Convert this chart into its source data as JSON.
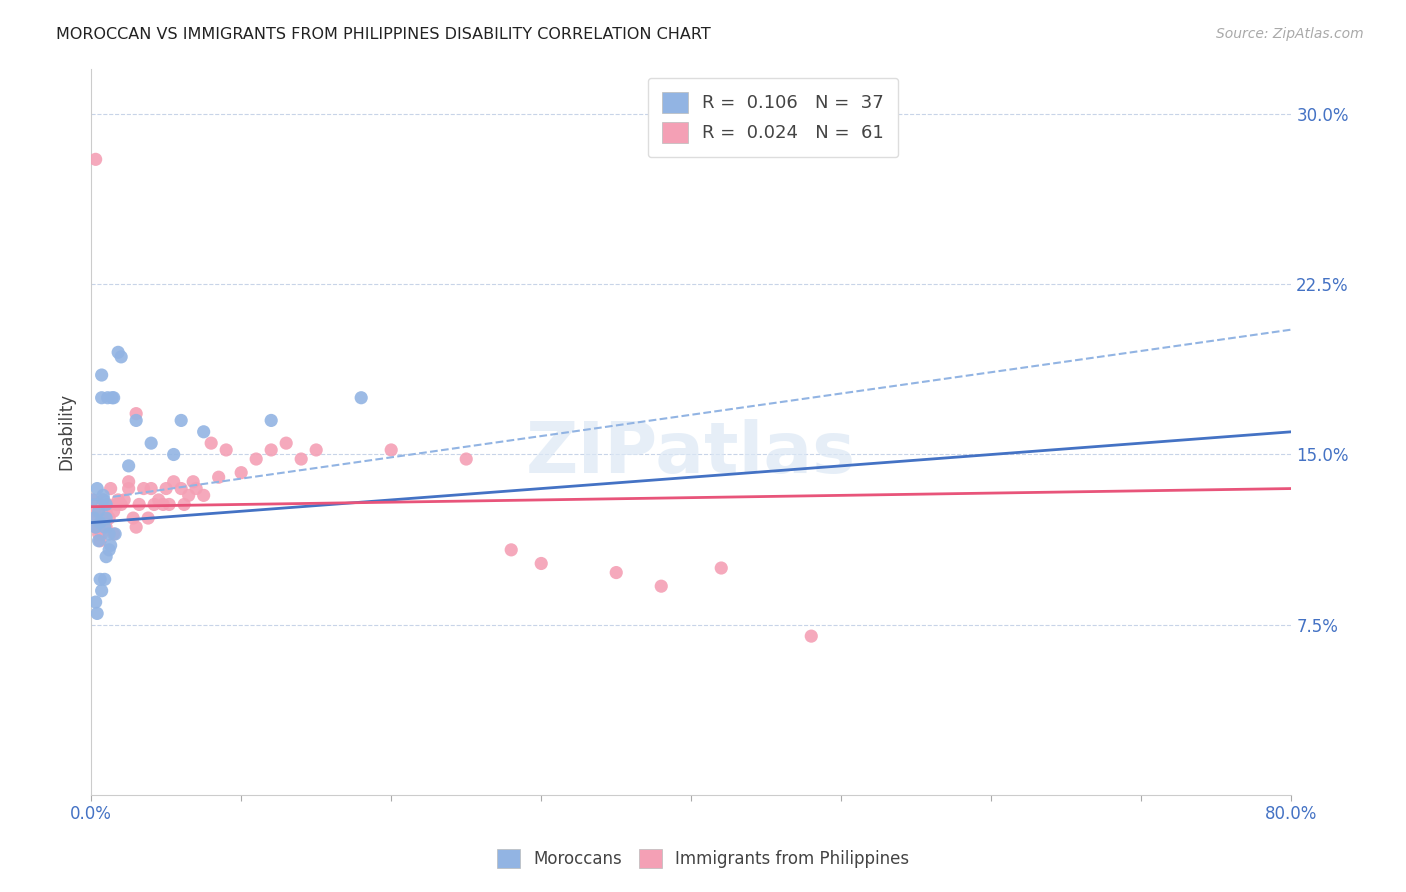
{
  "title": "MOROCCAN VS IMMIGRANTS FROM PHILIPPINES DISABILITY CORRELATION CHART",
  "source": "Source: ZipAtlas.com",
  "ylabel": "Disability",
  "xlim": [
    0.0,
    0.8
  ],
  "ylim": [
    0.0,
    0.32
  ],
  "yticks": [
    0.075,
    0.15,
    0.225,
    0.3
  ],
  "ytick_labels": [
    "7.5%",
    "15.0%",
    "22.5%",
    "30.0%"
  ],
  "xtick_labels_show": [
    "0.0%",
    "80.0%"
  ],
  "moroccan_R": 0.106,
  "moroccan_N": 37,
  "philippines_R": 0.024,
  "philippines_N": 61,
  "moroccan_color": "#92b4e3",
  "philippines_color": "#f4a0b5",
  "moroccan_line_color": "#4472c4",
  "philippines_line_color": "#e8547a",
  "dashed_line_color": "#92b4e3",
  "background_color": "#ffffff",
  "grid_color": "#c8d4e8",
  "moroccan_line": [
    0.12,
    0.16
  ],
  "philippines_line": [
    0.127,
    0.135
  ],
  "dashed_line": [
    0.13,
    0.205
  ],
  "moroccan_x": [
    0.001,
    0.002,
    0.003,
    0.004,
    0.005,
    0.005,
    0.006,
    0.007,
    0.007,
    0.008,
    0.008,
    0.009,
    0.01,
    0.01,
    0.011,
    0.012,
    0.013,
    0.014,
    0.015,
    0.016,
    0.018,
    0.02,
    0.025,
    0.03,
    0.04,
    0.055,
    0.06,
    0.075,
    0.003,
    0.004,
    0.006,
    0.007,
    0.009,
    0.01,
    0.012,
    0.12,
    0.18
  ],
  "moroccan_y": [
    0.13,
    0.122,
    0.118,
    0.135,
    0.112,
    0.125,
    0.12,
    0.175,
    0.185,
    0.13,
    0.132,
    0.118,
    0.122,
    0.128,
    0.175,
    0.115,
    0.11,
    0.175,
    0.175,
    0.115,
    0.195,
    0.193,
    0.145,
    0.165,
    0.155,
    0.15,
    0.165,
    0.16,
    0.085,
    0.08,
    0.095,
    0.09,
    0.095,
    0.105,
    0.108,
    0.165,
    0.175
  ],
  "philippines_x": [
    0.001,
    0.002,
    0.003,
    0.003,
    0.004,
    0.005,
    0.005,
    0.006,
    0.007,
    0.008,
    0.008,
    0.009,
    0.01,
    0.01,
    0.011,
    0.012,
    0.013,
    0.015,
    0.015,
    0.017,
    0.018,
    0.02,
    0.022,
    0.025,
    0.025,
    0.028,
    0.03,
    0.032,
    0.035,
    0.038,
    0.04,
    0.042,
    0.045,
    0.048,
    0.05,
    0.052,
    0.055,
    0.06,
    0.062,
    0.065,
    0.068,
    0.07,
    0.075,
    0.08,
    0.085,
    0.09,
    0.1,
    0.11,
    0.12,
    0.13,
    0.14,
    0.15,
    0.2,
    0.25,
    0.28,
    0.3,
    0.35,
    0.38,
    0.42,
    0.48,
    0.03
  ],
  "philippines_y": [
    0.13,
    0.125,
    0.118,
    0.28,
    0.122,
    0.115,
    0.118,
    0.112,
    0.115,
    0.13,
    0.128,
    0.122,
    0.118,
    0.125,
    0.128,
    0.122,
    0.135,
    0.115,
    0.125,
    0.128,
    0.13,
    0.128,
    0.13,
    0.135,
    0.138,
    0.122,
    0.118,
    0.128,
    0.135,
    0.122,
    0.135,
    0.128,
    0.13,
    0.128,
    0.135,
    0.128,
    0.138,
    0.135,
    0.128,
    0.132,
    0.138,
    0.135,
    0.132,
    0.155,
    0.14,
    0.152,
    0.142,
    0.148,
    0.152,
    0.155,
    0.148,
    0.152,
    0.152,
    0.148,
    0.108,
    0.102,
    0.098,
    0.092,
    0.1,
    0.07,
    0.168
  ]
}
